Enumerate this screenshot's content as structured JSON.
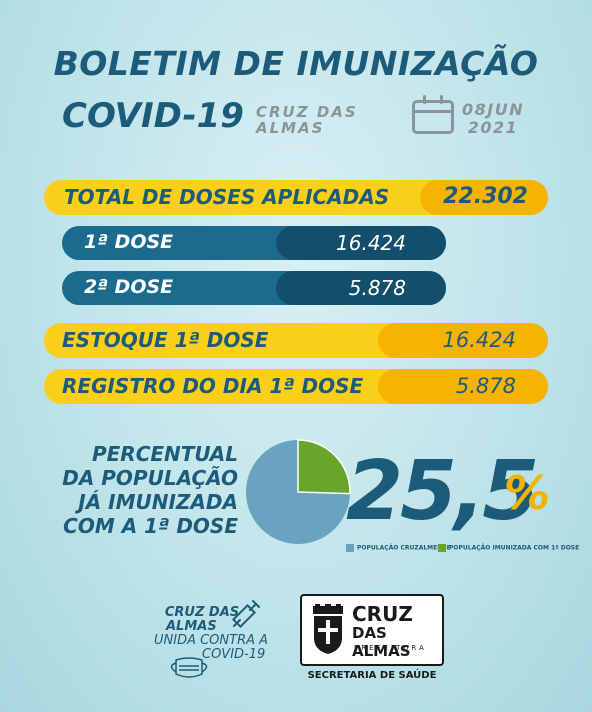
{
  "header": {
    "title_line1": "BOLETIM DE IMUNIZAÇÃO",
    "title_line2": "COVID-19",
    "city_line1": "CRUZ DAS",
    "city_line2": "ALMAS",
    "date_line1": "08JUN",
    "date_line2": "2021",
    "calendar_icon": "calendar-icon"
  },
  "total": {
    "label": "TOTAL DE DOSES APLICADAS",
    "value": "22.302"
  },
  "doses": [
    {
      "label": "1ª DOSE",
      "value": "16.424"
    },
    {
      "label": "2ª DOSE",
      "value": "5.878"
    }
  ],
  "estoque": {
    "label": "ESTOQUE 1ª DOSE",
    "value": "16.424"
  },
  "registro": {
    "label": "REGISTRO DO DIA 1ª DOSE",
    "value": "5.878"
  },
  "percent_block": {
    "line1": "PERCENTUAL",
    "line2": "DA POPULAÇÃO",
    "line3": "JÁ IMUNIZADA",
    "line4": "COM A 1ª DOSE",
    "value": "25,5",
    "symbol": "%",
    "legend_population": "POPULAÇÃO CRUZALMENSE",
    "legend_immunized": "POPULAÇÃO IMUNIZADA COM 1ª DOSE",
    "fraction_immunized": 0.255
  },
  "colors": {
    "dark_blue": "#1d5b7a",
    "yellow": "#f9cf1a",
    "amber": "#f4b400",
    "pie_population": "#6aa3bf",
    "pie_immunized": "#6aa52b"
  },
  "footer": {
    "campaign_line1": "CRUZ DAS",
    "campaign_line2": "ALMAS",
    "campaign_line3": "UNIDA CONTRA A",
    "campaign_line4": "COVID-19",
    "logo_line1": "CRUZ",
    "logo_line2": "DAS ALMAS",
    "logo_line3": "PREFEITURA",
    "secretaria": "SECRETARIA DE SAÚDE"
  }
}
